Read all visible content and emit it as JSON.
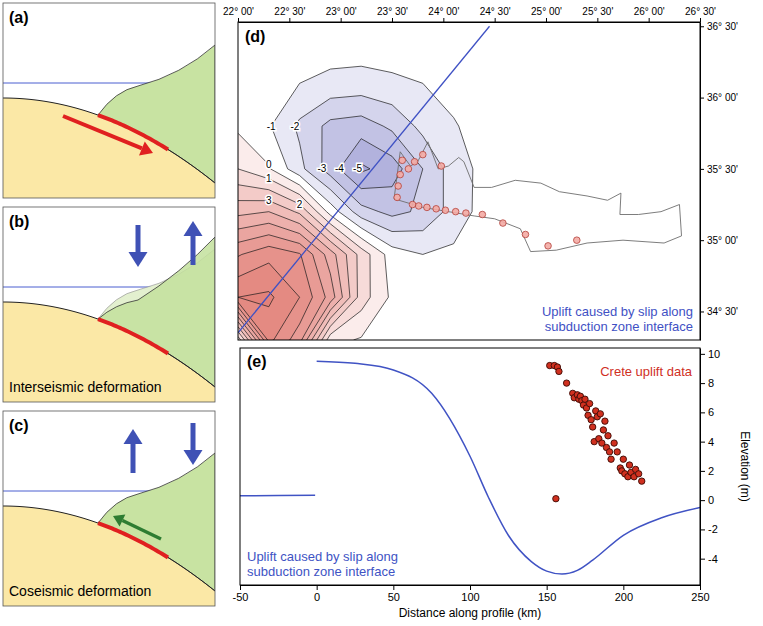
{
  "diagrams": [
    {
      "label": "(a)"
    },
    {
      "label": "(b)",
      "caption": "Interseismic deformation"
    },
    {
      "label": "(c)",
      "caption": "Coseismic deformation"
    }
  ],
  "chart_data": [
    {
      "type": "contour",
      "label": "(d)",
      "annotation": "Uplift caused by slip along subduction zone interface",
      "xlim": [
        22.0,
        26.5
      ],
      "xticks": [
        {
          "value": 22.0,
          "label": "22° 00'"
        },
        {
          "value": 22.5,
          "label": "22° 30'"
        },
        {
          "value": 23.0,
          "label": "23° 00'"
        },
        {
          "value": 23.5,
          "label": "23° 30'"
        },
        {
          "value": 24.0,
          "label": "24° 00'"
        },
        {
          "value": 24.5,
          "label": "24° 30'"
        },
        {
          "value": 25.0,
          "label": "25° 00'"
        },
        {
          "value": 25.5,
          "label": "25° 30'"
        },
        {
          "value": 26.0,
          "label": "26° 00'"
        },
        {
          "value": 26.5,
          "label": "26° 30'"
        }
      ],
      "ylim": [
        34.3,
        36.53
      ],
      "yticks": [
        {
          "value": 34.5,
          "label": "34° 30'"
        },
        {
          "value": 35.0,
          "label": "35° 00'"
        },
        {
          "value": 35.5,
          "label": "35° 30'"
        },
        {
          "value": 36.0,
          "label": "36° 00'"
        },
        {
          "value": 36.5,
          "label": "36° 30'"
        }
      ],
      "grid_lon": [
        21.7,
        22.0,
        22.3,
        22.6,
        22.9,
        23.2,
        23.5,
        23.8,
        24.1,
        24.4,
        24.7,
        25.0,
        25.3
      ],
      "grid_lat": [
        34.0,
        34.3,
        34.6,
        34.9,
        35.2,
        35.5,
        35.8,
        36.1,
        36.4,
        36.7
      ],
      "values": [
        [
          0.3,
          0.3,
          0.2,
          0.1,
          0.1,
          -0.1,
          -0.1,
          -0.1,
          -0.1,
          -0.1,
          -0.1,
          -0.1,
          -0.1
        ],
        [
          0.3,
          0.3,
          8.3,
          6.4,
          0.3,
          -0.1,
          -0.1,
          -0.1,
          -0.1,
          -0.1,
          -0.1,
          -0.1,
          -0.1
        ],
        [
          7.6,
          9.0,
          9.2,
          8.0,
          5.6,
          1.5,
          -0.2,
          -0.3,
          -0.2,
          -0.1,
          -0.1,
          -0.1,
          -0.1
        ],
        [
          5.1,
          6.9,
          7.7,
          7.1,
          4.5,
          1.6,
          -0.5,
          -1.0,
          -0.8,
          -0.4,
          -0.1,
          -0.1,
          -0.1
        ],
        [
          2.6,
          3.7,
          4.0,
          2.8,
          -0.4,
          -2.6,
          -3.3,
          -2.8,
          -1.6,
          -0.6,
          -0.2,
          -0.1,
          -0.1
        ],
        [
          0.9,
          1.0,
          0.1,
          -1.7,
          -3.5,
          -5.2,
          -4.5,
          -3.0,
          -1.5,
          -0.7,
          -0.2,
          -0.1,
          -0.1
        ],
        [
          0.1,
          -0.2,
          -0.9,
          -2.2,
          -3.3,
          -3.5,
          -2.8,
          -1.7,
          -1.1,
          -0.5,
          -0.2,
          -0.1,
          -0.1
        ],
        [
          -0.1,
          -0.2,
          -0.6,
          -1.0,
          -1.3,
          -1.4,
          -1.2,
          -1.0,
          -0.6,
          -0.4,
          -0.2,
          -0.1,
          -0.1
        ],
        [
          -0.1,
          -0.1,
          -0.2,
          -0.2,
          -0.4,
          -0.4,
          -0.4,
          -0.4,
          -0.4,
          -0.3,
          -0.2,
          -0.1,
          -0.1
        ],
        [
          -0.1,
          -0.1,
          -0.1,
          -0.1,
          -0.1,
          -0.2,
          -0.2,
          -0.2,
          -0.2,
          -0.2,
          -0.2,
          -0.1,
          -0.1
        ]
      ],
      "contour_levels": [
        -5,
        -4,
        -3,
        -2,
        -1,
        0,
        1,
        2,
        3,
        4,
        5,
        6,
        7,
        8,
        9
      ],
      "contour_labels": [
        -5,
        -4,
        -3,
        -2,
        -1,
        0,
        1,
        2,
        3
      ],
      "coastline": {
        "lon": [
          23.52,
          23.58,
          23.68,
          23.75,
          23.85,
          23.95,
          24.05,
          24.15,
          24.2,
          24.3,
          24.47,
          24.7,
          24.95,
          25.13,
          25.4,
          25.6,
          25.73,
          25.72,
          25.9,
          26.12,
          26.3,
          26.32,
          26.15,
          25.75,
          25.4,
          25.1,
          24.85,
          24.75,
          24.5,
          24.3,
          24.05,
          23.8
        ],
        "lat": [
          35.29,
          35.62,
          35.52,
          35.55,
          35.69,
          35.5,
          35.52,
          35.58,
          35.55,
          35.37,
          35.37,
          35.42,
          35.4,
          35.34,
          35.31,
          35.28,
          35.33,
          35.18,
          35.18,
          35.2,
          35.25,
          35.03,
          34.98,
          35.0,
          34.98,
          34.93,
          34.92,
          35.08,
          35.15,
          35.17,
          35.2,
          35.23
        ]
      },
      "profile": {
        "lon": [
          22.0,
          24.45
        ],
        "lat": [
          34.35,
          36.5
        ]
      },
      "sites": {
        "lon": [
          23.55,
          23.56,
          23.58,
          23.6,
          23.66,
          23.7,
          23.76,
          23.84,
          23.93,
          24.02,
          24.12,
          24.22,
          23.72,
          23.8,
          23.98,
          24.38,
          24.58,
          24.8,
          25.02,
          25.3
        ],
        "lat": [
          35.3,
          35.38,
          35.46,
          35.56,
          35.5,
          35.25,
          35.24,
          35.23,
          35.22,
          35.21,
          35.2,
          35.19,
          35.55,
          35.6,
          35.52,
          35.18,
          35.12,
          35.04,
          34.96,
          35.0
        ]
      }
    },
    {
      "type": "line",
      "label": "(e)",
      "xlabel": "Distance along profile (km)",
      "ylabel": "Elevation (m)",
      "xlim": [
        -50,
        250
      ],
      "xticks": [
        -50,
        0,
        50,
        100,
        150,
        200,
        250
      ],
      "ylim": [
        -5.8,
        10.4
      ],
      "yticks": [
        -4,
        -2,
        0,
        2,
        4,
        6,
        8,
        10
      ],
      "series": [
        {
          "name": "Uplift caused by slip along subduction zone interface",
          "type": "line",
          "color": "#4053c4",
          "x": [
            -50,
            -25,
            -1,
            0,
            0,
            25,
            50,
            75,
            100,
            112,
            125,
            140,
            150,
            160,
            170,
            180,
            200,
            225,
            250
          ],
          "values": [
            0.3,
            0.32,
            0.33,
            null,
            9.5,
            9.35,
            8.9,
            7.3,
            3.0,
            0.2,
            -2.4,
            -4.2,
            -4.85,
            -5.05,
            -4.8,
            -4.1,
            -2.4,
            -1.2,
            -0.5
          ]
        },
        {
          "name": "Crete uplift data",
          "type": "scatter",
          "color": "#d0301f",
          "marker": "circle",
          "x": [
            152,
            155,
            157,
            158,
            156,
            163,
            167,
            168,
            170,
            171,
            172,
            173,
            174,
            175,
            176,
            177,
            178,
            179,
            180,
            181,
            182,
            183,
            184,
            185,
            186,
            187,
            188,
            189,
            190,
            191,
            192,
            194,
            196,
            198,
            199,
            200,
            201,
            203,
            204,
            205,
            207,
            208,
            210,
            212
          ],
          "values": [
            9.2,
            9.2,
            9.1,
            8.8,
            0.1,
            8.0,
            7.3,
            7.0,
            7.2,
            6.9,
            7.1,
            6.8,
            6.5,
            6.9,
            6.3,
            5.8,
            6.6,
            5.5,
            5.0,
            4.0,
            6.1,
            5.7,
            4.2,
            5.9,
            3.9,
            4.8,
            5.4,
            3.6,
            4.4,
            3.3,
            2.8,
            3.9,
            3.3,
            2.2,
            2.0,
            2.8,
            1.8,
            1.6,
            2.4,
            1.9,
            1.6,
            2.1,
            1.8,
            1.3
          ]
        }
      ]
    }
  ]
}
